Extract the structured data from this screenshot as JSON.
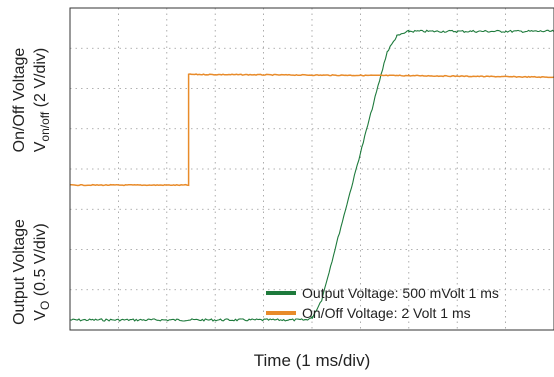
{
  "chart_data": {
    "type": "line",
    "xlabel": "Time (1 ms/div)",
    "ylabel_top": {
      "line1": "On/Off Voltage",
      "line2_prefix": "V",
      "line2_sub": "on/off",
      "line2_suffix": "  (2 V/div)"
    },
    "ylabel_bottom": {
      "line1": "Output Voltage",
      "line2_prefix": "V",
      "line2_sub": "O",
      "line2_suffix": " (0.5 V/div)"
    },
    "divisions": {
      "x": 10,
      "y": 8
    },
    "xlim": [
      0,
      10
    ],
    "ylim": [
      0,
      8
    ],
    "grid": true,
    "legend_position": "bottom-right",
    "series": [
      {
        "name": "Output Voltage: 500 mVolt 1 ms",
        "color": "#1e7a3c",
        "x": [
          0,
          4.85,
          5.0,
          5.2,
          6.55,
          6.75,
          7.0,
          10
        ],
        "y": [
          0.25,
          0.25,
          0.3,
          0.75,
          6.9,
          7.3,
          7.42,
          7.42
        ]
      },
      {
        "name": "On/Off Voltage: 2 Volt 1 ms",
        "color": "#e88b2a",
        "x": [
          0,
          2.45,
          2.45,
          7.0,
          10
        ],
        "y": [
          3.6,
          3.6,
          6.35,
          6.32,
          6.28
        ]
      }
    ]
  }
}
